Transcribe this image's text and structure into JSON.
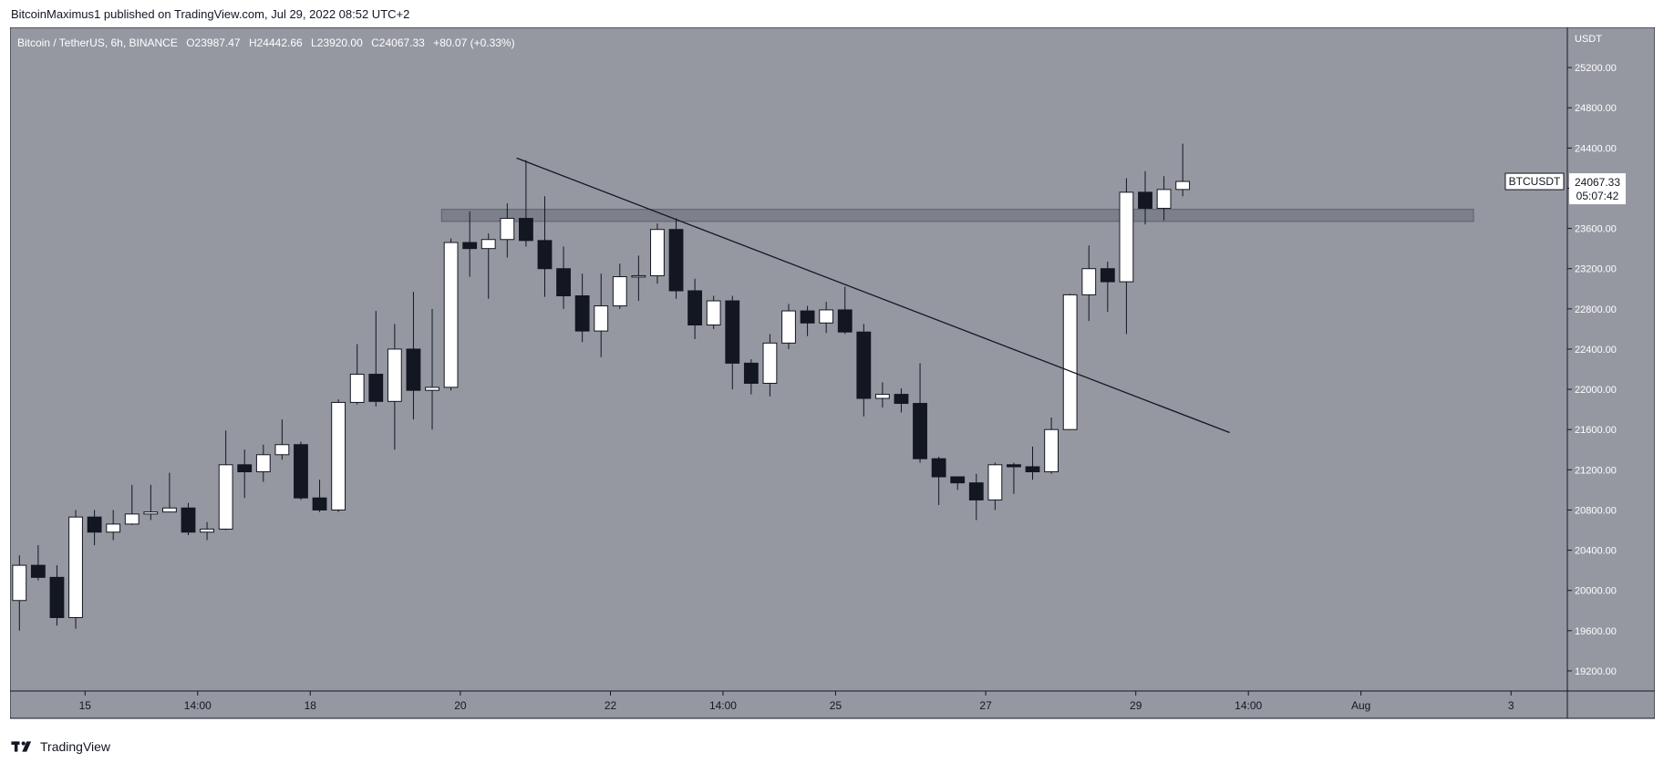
{
  "header": {
    "author": "BitcoinMaximus1",
    "published_text": "published on TradingView.com, Jul 29, 2022 08:52 UTC+2"
  },
  "colors": {
    "background": "#ffffff",
    "plot_background": "#9598a1",
    "axis_background": "#9598a1",
    "candle_up": "#ffffff",
    "candle_down": "#131722",
    "wick": "#131722",
    "trendline": "#131722",
    "zone": "#787b86"
  },
  "legend": {
    "symbol": "Bitcoin / TetherUS, 6h, BINANCE",
    "o_label": "O",
    "o_value": "23987.47",
    "h_label": "H",
    "h_value": "24442.66",
    "l_label": "L",
    "l_value": "23920.00",
    "c_label": "C",
    "c_value": "24067.33",
    "change": "+80.07 (+0.33%)"
  },
  "price_label": {
    "symbol": "BTCUSDT",
    "price": "24067.33",
    "countdown": "05:07:42"
  },
  "footer": {
    "brand": "TradingView",
    "logo_icon": "tradingview-logo-icon"
  },
  "chart_data": {
    "type": "candlestick",
    "symbol": "Bitcoin / TetherUS",
    "interval": "6h",
    "exchange": "BINANCE",
    "quote_currency": "USDT",
    "y_axis": {
      "unit": "USDT",
      "position": "right",
      "range": [
        19000,
        25600
      ],
      "ticks": [
        19200,
        19600,
        20000,
        20400,
        20800,
        21200,
        21600,
        22000,
        22400,
        22800,
        23200,
        23600,
        24000,
        24400,
        24800,
        25200
      ],
      "tick_labels": [
        "19200.00",
        "19600.00",
        "20000.00",
        "20400.00",
        "20800.00",
        "21200.00",
        "21600.00",
        "22000.00",
        "22400.00",
        "22800.00",
        "23200.00",
        "23600.00",
        "24000.00",
        "24400.00",
        "24800.00",
        "25200.00"
      ]
    },
    "x_axis": {
      "range": [
        "2022-07-14T00:00",
        "2022-08-03T18:00"
      ],
      "ticks": [
        {
          "label": "15",
          "time": "2022-07-15T00:00"
        },
        {
          "label": "14:00",
          "time": "2022-07-16T12:00"
        },
        {
          "label": "18",
          "time": "2022-07-18T00:00"
        },
        {
          "label": "20",
          "time": "2022-07-20T00:00"
        },
        {
          "label": "22",
          "time": "2022-07-22T00:00"
        },
        {
          "label": "14:00",
          "time": "2022-07-23T12:00"
        },
        {
          "label": "25",
          "time": "2022-07-25T00:00"
        },
        {
          "label": "27",
          "time": "2022-07-27T00:00"
        },
        {
          "label": "29",
          "time": "2022-07-29T00:00"
        },
        {
          "label": "14:00",
          "time": "2022-07-30T12:00"
        },
        {
          "label": "Aug",
          "time": "2022-08-01T00:00"
        },
        {
          "label": "3",
          "time": "2022-08-03T00:00"
        }
      ]
    },
    "candles": [
      {
        "time": "2022-07-14T00:00",
        "o": 19900,
        "h": 20350,
        "l": 19600,
        "c": 20250
      },
      {
        "time": "2022-07-14T06:00",
        "o": 20250,
        "h": 20450,
        "l": 20100,
        "c": 20130
      },
      {
        "time": "2022-07-14T12:00",
        "o": 20130,
        "h": 20250,
        "l": 19650,
        "c": 19730
      },
      {
        "time": "2022-07-14T18:00",
        "o": 19730,
        "h": 20800,
        "l": 19620,
        "c": 20730
      },
      {
        "time": "2022-07-15T00:00",
        "o": 20730,
        "h": 20800,
        "l": 20450,
        "c": 20580
      },
      {
        "time": "2022-07-15T06:00",
        "o": 20580,
        "h": 20800,
        "l": 20500,
        "c": 20660
      },
      {
        "time": "2022-07-15T12:00",
        "o": 20660,
        "h": 21050,
        "l": 20650,
        "c": 20760
      },
      {
        "time": "2022-07-15T18:00",
        "o": 20760,
        "h": 21050,
        "l": 20700,
        "c": 20780
      },
      {
        "time": "2022-07-16T00:00",
        "o": 20780,
        "h": 21170,
        "l": 20780,
        "c": 20820
      },
      {
        "time": "2022-07-16T06:00",
        "o": 20820,
        "h": 20870,
        "l": 20550,
        "c": 20580
      },
      {
        "time": "2022-07-16T12:00",
        "o": 20580,
        "h": 20680,
        "l": 20500,
        "c": 20610
      },
      {
        "time": "2022-07-16T18:00",
        "o": 20610,
        "h": 21590,
        "l": 20600,
        "c": 21250
      },
      {
        "time": "2022-07-17T00:00",
        "o": 21250,
        "h": 21400,
        "l": 20920,
        "c": 21180
      },
      {
        "time": "2022-07-17T06:00",
        "o": 21180,
        "h": 21450,
        "l": 21080,
        "c": 21350
      },
      {
        "time": "2022-07-17T12:00",
        "o": 21350,
        "h": 21700,
        "l": 21300,
        "c": 21450
      },
      {
        "time": "2022-07-17T18:00",
        "o": 21450,
        "h": 21480,
        "l": 20900,
        "c": 20920
      },
      {
        "time": "2022-07-18T00:00",
        "o": 20920,
        "h": 21100,
        "l": 20780,
        "c": 20800
      },
      {
        "time": "2022-07-18T06:00",
        "o": 20800,
        "h": 21900,
        "l": 20780,
        "c": 21870
      },
      {
        "time": "2022-07-18T12:00",
        "o": 21870,
        "h": 22450,
        "l": 21850,
        "c": 22150
      },
      {
        "time": "2022-07-18T18:00",
        "o": 22150,
        "h": 22780,
        "l": 21830,
        "c": 21880
      },
      {
        "time": "2022-07-19T00:00",
        "o": 21880,
        "h": 22650,
        "l": 21400,
        "c": 22400
      },
      {
        "time": "2022-07-19T06:00",
        "o": 22400,
        "h": 22970,
        "l": 21700,
        "c": 21990
      },
      {
        "time": "2022-07-19T12:00",
        "o": 21990,
        "h": 22800,
        "l": 21600,
        "c": 22020
      },
      {
        "time": "2022-07-19T18:00",
        "o": 22020,
        "h": 23500,
        "l": 21990,
        "c": 23460
      },
      {
        "time": "2022-07-20T00:00",
        "o": 23460,
        "h": 23770,
        "l": 23120,
        "c": 23400
      },
      {
        "time": "2022-07-20T06:00",
        "o": 23400,
        "h": 23550,
        "l": 22900,
        "c": 23490
      },
      {
        "time": "2022-07-20T12:00",
        "o": 23490,
        "h": 23850,
        "l": 23310,
        "c": 23700
      },
      {
        "time": "2022-07-20T18:00",
        "o": 23700,
        "h": 24280,
        "l": 23420,
        "c": 23480
      },
      {
        "time": "2022-07-21T00:00",
        "o": 23480,
        "h": 23920,
        "l": 22920,
        "c": 23200
      },
      {
        "time": "2022-07-21T06:00",
        "o": 23200,
        "h": 23420,
        "l": 22800,
        "c": 22930
      },
      {
        "time": "2022-07-21T12:00",
        "o": 22930,
        "h": 23150,
        "l": 22470,
        "c": 22580
      },
      {
        "time": "2022-07-21T18:00",
        "o": 22580,
        "h": 23150,
        "l": 22320,
        "c": 22830
      },
      {
        "time": "2022-07-22T00:00",
        "o": 22830,
        "h": 23250,
        "l": 22800,
        "c": 23120
      },
      {
        "time": "2022-07-22T06:00",
        "o": 23120,
        "h": 23330,
        "l": 22880,
        "c": 23130
      },
      {
        "time": "2022-07-22T12:00",
        "o": 23130,
        "h": 23650,
        "l": 23050,
        "c": 23590
      },
      {
        "time": "2022-07-22T18:00",
        "o": 23590,
        "h": 23700,
        "l": 22900,
        "c": 22980
      },
      {
        "time": "2022-07-23T00:00",
        "o": 22980,
        "h": 23100,
        "l": 22500,
        "c": 22640
      },
      {
        "time": "2022-07-23T06:00",
        "o": 22640,
        "h": 22930,
        "l": 22600,
        "c": 22880
      },
      {
        "time": "2022-07-23T12:00",
        "o": 22880,
        "h": 22930,
        "l": 22000,
        "c": 22260
      },
      {
        "time": "2022-07-23T18:00",
        "o": 22260,
        "h": 22300,
        "l": 21950,
        "c": 22060
      },
      {
        "time": "2022-07-24T00:00",
        "o": 22060,
        "h": 22550,
        "l": 21930,
        "c": 22460
      },
      {
        "time": "2022-07-24T06:00",
        "o": 22460,
        "h": 22850,
        "l": 22400,
        "c": 22780
      },
      {
        "time": "2022-07-24T12:00",
        "o": 22780,
        "h": 22830,
        "l": 22530,
        "c": 22660
      },
      {
        "time": "2022-07-24T18:00",
        "o": 22660,
        "h": 22870,
        "l": 22560,
        "c": 22790
      },
      {
        "time": "2022-07-25T00:00",
        "o": 22790,
        "h": 23020,
        "l": 22550,
        "c": 22570
      },
      {
        "time": "2022-07-25T06:00",
        "o": 22570,
        "h": 22650,
        "l": 21730,
        "c": 21910
      },
      {
        "time": "2022-07-25T12:00",
        "o": 21910,
        "h": 22070,
        "l": 21820,
        "c": 21950
      },
      {
        "time": "2022-07-25T18:00",
        "o": 21950,
        "h": 22010,
        "l": 21770,
        "c": 21860
      },
      {
        "time": "2022-07-26T00:00",
        "o": 21860,
        "h": 22260,
        "l": 21270,
        "c": 21310
      },
      {
        "time": "2022-07-26T06:00",
        "o": 21310,
        "h": 21330,
        "l": 20850,
        "c": 21130
      },
      {
        "time": "2022-07-26T12:00",
        "o": 21130,
        "h": 21130,
        "l": 21000,
        "c": 21070
      },
      {
        "time": "2022-07-26T18:00",
        "o": 21070,
        "h": 21160,
        "l": 20700,
        "c": 20900
      },
      {
        "time": "2022-07-27T00:00",
        "o": 20900,
        "h": 21270,
        "l": 20800,
        "c": 21250
      },
      {
        "time": "2022-07-27T06:00",
        "o": 21250,
        "h": 21270,
        "l": 20960,
        "c": 21230
      },
      {
        "time": "2022-07-27T12:00",
        "o": 21230,
        "h": 21430,
        "l": 21100,
        "c": 21180
      },
      {
        "time": "2022-07-27T18:00",
        "o": 21180,
        "h": 21720,
        "l": 21160,
        "c": 21600
      },
      {
        "time": "2022-07-28T00:00",
        "o": 21600,
        "h": 22950,
        "l": 21600,
        "c": 22940
      },
      {
        "time": "2022-07-28T06:00",
        "o": 22940,
        "h": 23430,
        "l": 22680,
        "c": 23200
      },
      {
        "time": "2022-07-28T12:00",
        "o": 23200,
        "h": 23270,
        "l": 22770,
        "c": 23070
      },
      {
        "time": "2022-07-28T18:00",
        "o": 23070,
        "h": 24100,
        "l": 22550,
        "c": 23960
      },
      {
        "time": "2022-07-29T00:00",
        "o": 23960,
        "h": 24170,
        "l": 23640,
        "c": 23800
      },
      {
        "time": "2022-07-29T06:00",
        "o": 23800,
        "h": 24120,
        "l": 23680,
        "c": 23987.47
      },
      {
        "time": "2022-07-29T12:00",
        "o": 23987.47,
        "h": 24442.66,
        "l": 23920,
        "c": 24067.33
      }
    ],
    "trendline": {
      "start": {
        "time": "2022-07-20T18:00",
        "price": 24300
      },
      "end": {
        "time": "2022-07-30T06:00",
        "price": 21570
      }
    },
    "zone": {
      "start_time": "2022-07-19T18:00",
      "end_time": "2022-08-02T12:00",
      "price_low": 23670,
      "price_high": 23790
    },
    "last_price": 24067.33,
    "grid": false,
    "legend_position": "top-left"
  }
}
